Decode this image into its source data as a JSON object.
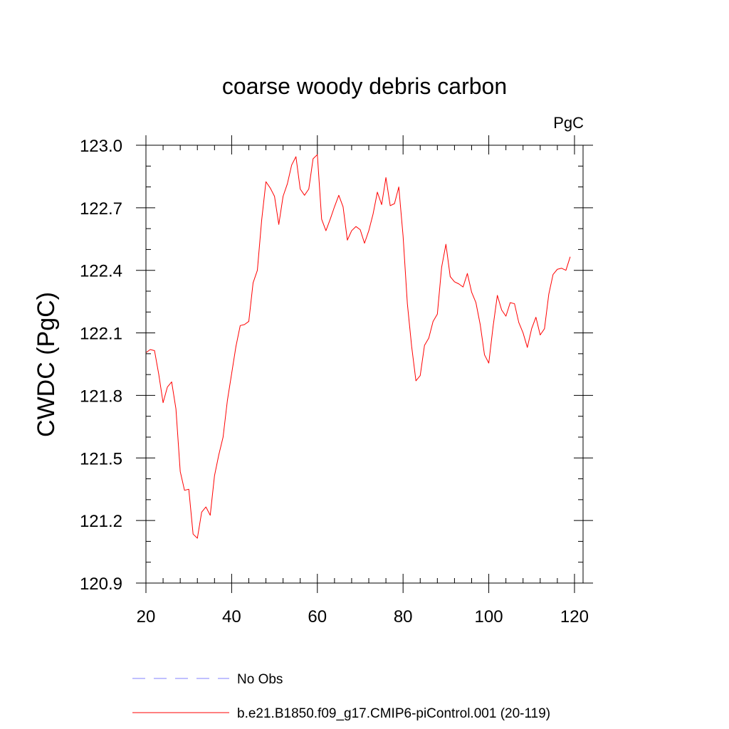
{
  "chart_data": {
    "type": "line",
    "title": "coarse woody debris carbon",
    "units_label": "PgC",
    "ylabel": "CWDC  (PgC)",
    "xlabel": "",
    "xlim": [
      20,
      122
    ],
    "ylim": [
      120.9,
      123.0
    ],
    "x_ticks": [
      20,
      40,
      60,
      80,
      100,
      120
    ],
    "x_tick_labels": [
      "20",
      "40",
      "60",
      "80",
      "100",
      "120"
    ],
    "y_ticks": [
      120.9,
      121.2,
      121.5,
      121.8,
      122.1,
      122.4,
      122.7,
      123.0
    ],
    "y_tick_labels": [
      "120.9",
      "121.2",
      "121.5",
      "121.8",
      "122.1",
      "122.4",
      "122.7",
      "123.0"
    ],
    "grid": false,
    "legend_position": "bottom",
    "series": [
      {
        "name": "No Obs",
        "color": "#8080ff",
        "dash": "dashed",
        "x": [],
        "values": []
      },
      {
        "name": "b.e21.B1850.f09_g17.CMIP6-piControl.001 (20-119)",
        "color": "#ff0000",
        "dash": "solid",
        "x": [
          20,
          21,
          22,
          23,
          24,
          25,
          26,
          27,
          28,
          29,
          30,
          31,
          32,
          33,
          34,
          35,
          36,
          37,
          38,
          39,
          40,
          41,
          42,
          43,
          44,
          45,
          46,
          47,
          48,
          49,
          50,
          51,
          52,
          53,
          54,
          55,
          56,
          57,
          58,
          59,
          60,
          61,
          62,
          63,
          64,
          65,
          66,
          67,
          68,
          69,
          70,
          71,
          72,
          73,
          74,
          75,
          76,
          77,
          78,
          79,
          80,
          81,
          82,
          83,
          84,
          85,
          86,
          87,
          88,
          89,
          90,
          91,
          92,
          93,
          94,
          95,
          96,
          97,
          98,
          99,
          100,
          101,
          102,
          103,
          104,
          105,
          106,
          107,
          108,
          109,
          110,
          111,
          112,
          113,
          114,
          115,
          116,
          117,
          118,
          119
        ],
        "values": [
          122.005,
          122.02,
          122.015,
          121.9,
          121.765,
          121.84,
          121.865,
          121.735,
          121.435,
          121.345,
          121.35,
          121.135,
          121.115,
          121.24,
          121.265,
          121.225,
          121.415,
          121.515,
          121.6,
          121.775,
          121.905,
          122.035,
          122.135,
          122.14,
          122.155,
          122.34,
          122.4,
          122.64,
          122.825,
          122.795,
          122.755,
          122.62,
          122.755,
          122.815,
          122.905,
          122.945,
          122.79,
          122.76,
          122.79,
          122.935,
          122.955,
          122.645,
          122.59,
          122.645,
          122.705,
          122.76,
          122.705,
          122.545,
          122.59,
          122.61,
          122.595,
          122.53,
          122.59,
          122.67,
          122.775,
          122.715,
          122.845,
          122.71,
          122.72,
          122.8,
          122.565,
          122.24,
          122.035,
          121.87,
          121.895,
          122.04,
          122.075,
          122.155,
          122.19,
          122.415,
          122.525,
          122.37,
          122.345,
          122.335,
          122.32,
          122.385,
          122.295,
          122.245,
          122.14,
          121.995,
          121.955,
          122.13,
          122.28,
          122.21,
          122.18,
          122.245,
          122.24,
          122.15,
          122.1,
          122.03,
          122.12,
          122.175,
          122.09,
          122.12,
          122.285,
          122.38,
          122.405,
          122.41,
          122.4,
          122.465
        ]
      }
    ]
  }
}
